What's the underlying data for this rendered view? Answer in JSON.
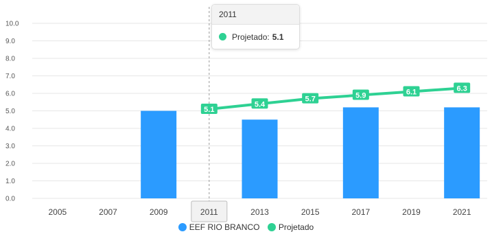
{
  "chart_data": {
    "type": "bar",
    "categories": [
      "2005",
      "2007",
      "2009",
      "2011",
      "2013",
      "2015",
      "2017",
      "2019",
      "2021"
    ],
    "series": [
      {
        "name": "EEF RIO BRANCO",
        "type": "bar",
        "color": "#2b9bff",
        "values": [
          null,
          null,
          5.0,
          null,
          4.5,
          null,
          5.2,
          null,
          5.2
        ]
      },
      {
        "name": "Projetado",
        "type": "line",
        "color": "#2ed193",
        "values": [
          null,
          null,
          null,
          5.1,
          5.4,
          5.7,
          5.9,
          6.1,
          6.3
        ],
        "data_labels": [
          null,
          null,
          null,
          "5.1",
          "5.4",
          "5.7",
          "5.9",
          "6.1",
          "6.3"
        ]
      }
    ],
    "yticks": [
      "0.0",
      "1.0",
      "2.0",
      "3.0",
      "4.0",
      "5.0",
      "6.0",
      "7.0",
      "8.0",
      "9.0",
      "10.0"
    ],
    "ylim": [
      0,
      10
    ],
    "grid": true,
    "legend_position": "bottom-center",
    "highlighted_category": "2011"
  },
  "tooltip": {
    "title": "2011",
    "series_name": "Projetado:",
    "value": "5.1"
  },
  "legend": [
    {
      "label": "EEF RIO BRANCO",
      "color": "#2b9bff"
    },
    {
      "label": "Projetado",
      "color": "#2ed193"
    }
  ]
}
